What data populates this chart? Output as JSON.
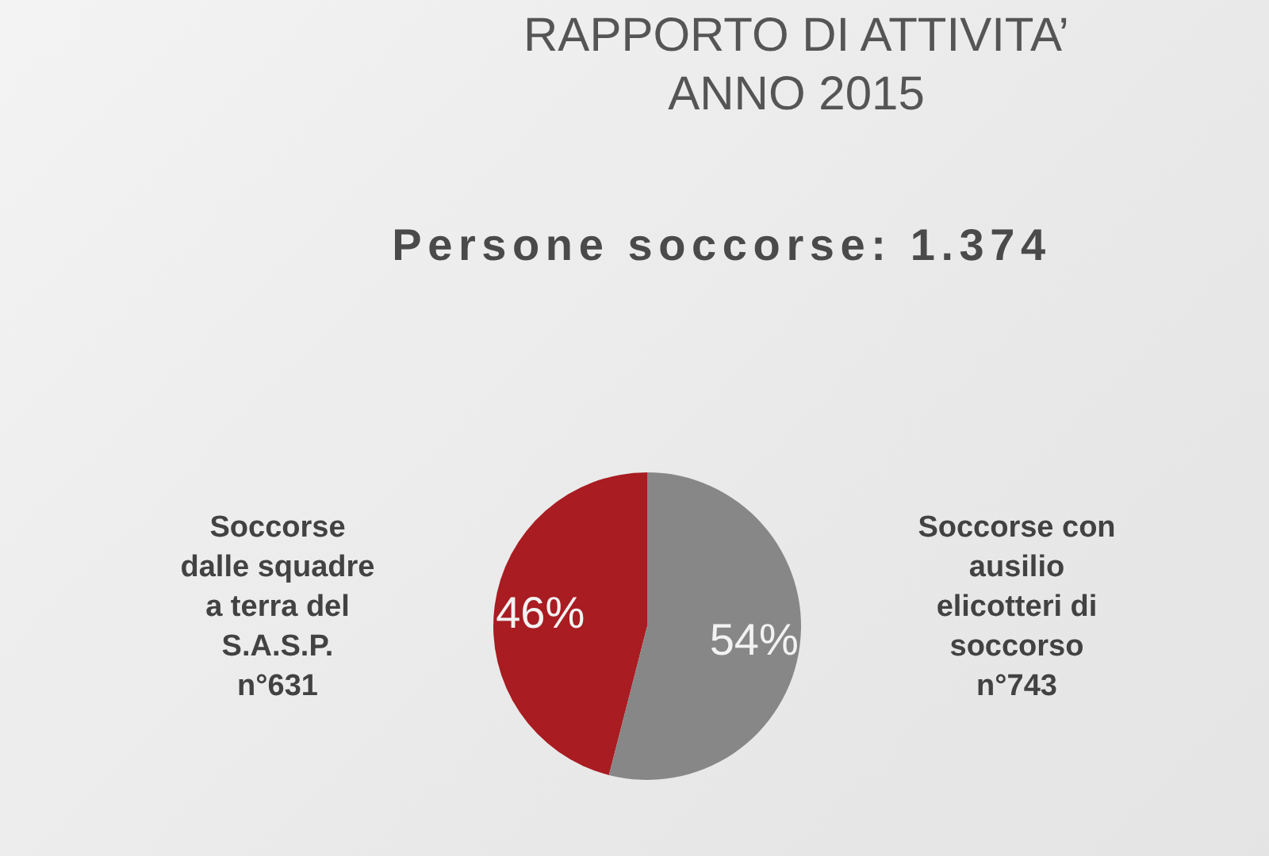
{
  "chart_data": {
    "type": "pie",
    "title": "RAPPORTO DI ATTIVITA’ ANNO 2015",
    "subtitle": "Persone soccorse: 1.374",
    "categories": [
      "Soccorse dalle squadre a terra del S.A.S.P. n°631",
      "Soccorse con ausilio elicotteri di soccorso n°743"
    ],
    "values": [
      46,
      54
    ],
    "colors": [
      "#a81c22",
      "#878787"
    ],
    "value_labels": [
      "46%",
      "54%"
    ]
  }
}
